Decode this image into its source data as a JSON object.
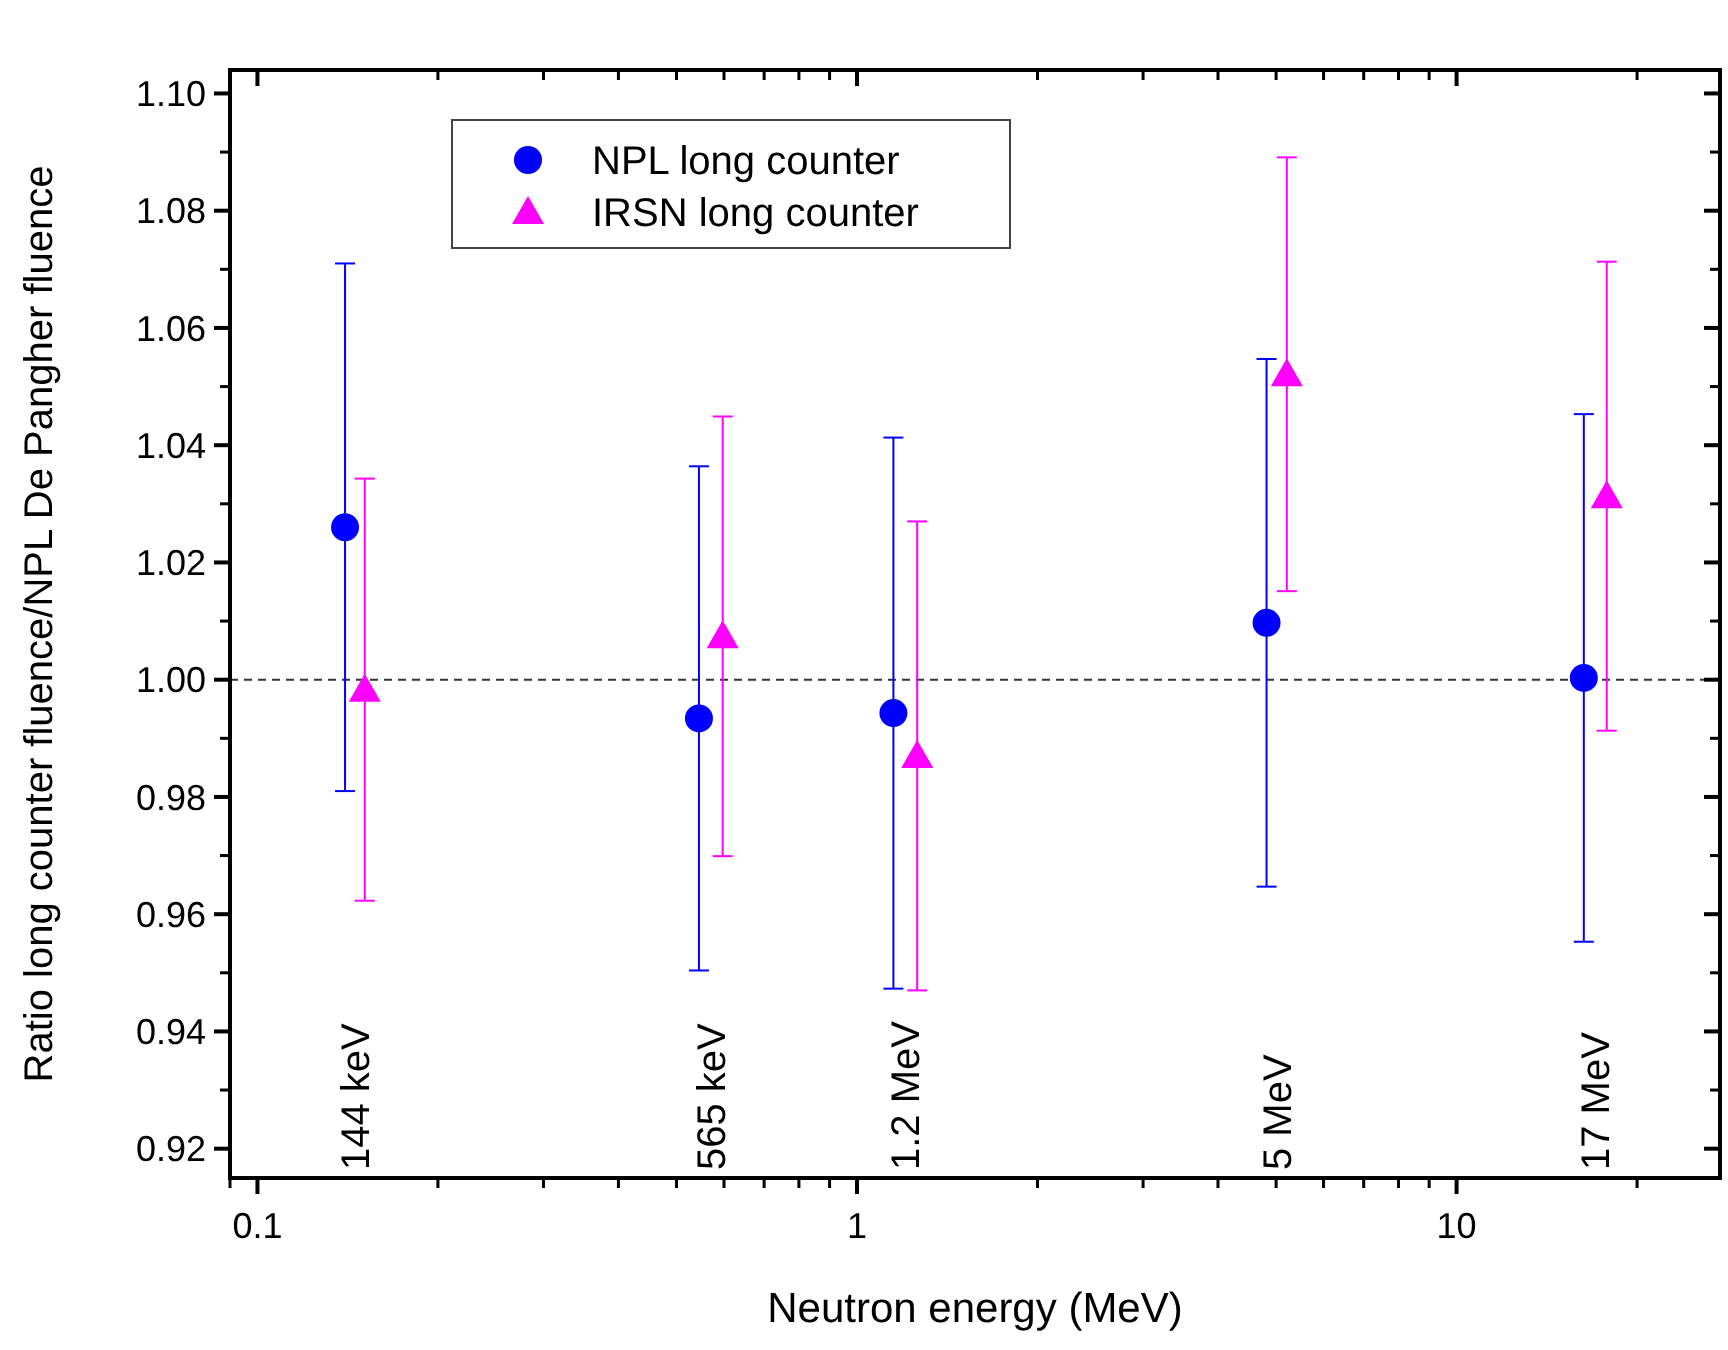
{
  "chart_data": {
    "type": "scatter",
    "xlabel": "Neutron energy (MeV)",
    "ylabel": "Ratio long counter fluence/NPL De Pangher fluence",
    "log": "x",
    "xlim": [
      0.09,
      27.5
    ],
    "xticks": [
      0.1,
      1,
      10
    ],
    "ylim": [
      0.915,
      1.104
    ],
    "yticks": [
      0.92,
      0.94,
      0.96,
      0.98,
      {
        "value": 1,
        "label": "1.00"
      },
      1.02,
      1.04,
      1.06,
      1.08,
      {
        "value": 1.1,
        "label": "1.10"
      }
    ],
    "grid": false,
    "legend": "top left",
    "series": [
      {
        "name": "NPL long counter",
        "color": "#0000ff",
        "marker": "circle",
        "x": [
          0.14,
          0.545,
          1.15,
          4.82,
          16.3
        ],
        "values": [
          1.026,
          0.9934,
          0.9943,
          1.0097,
          1.0003
        ],
        "errors": [
          0.045,
          0.043,
          0.047,
          0.045,
          0.045
        ]
      },
      {
        "name": "IRSN long counter",
        "color": "#ff00ff",
        "marker": "triangle",
        "x": [
          0.151,
          0.597,
          1.26,
          5.21,
          17.8
        ],
        "values": [
          0.9983,
          1.0074,
          0.987,
          1.0521,
          1.0313
        ],
        "errors": [
          0.036,
          0.0375,
          0.04,
          0.037,
          0.04
        ]
      }
    ],
    "ref_lines": [
      {
        "axis": "y",
        "value": 1,
        "line_style": "dashed",
        "color": "#333333"
      }
    ],
    "annotations": [
      "144 keV",
      "565 keV",
      "1.2 MeV",
      "5 MeV",
      "17 MeV"
    ]
  }
}
